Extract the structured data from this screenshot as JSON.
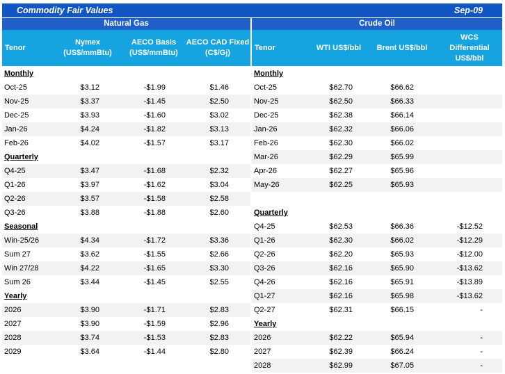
{
  "title": "Commodity Fair Values",
  "date": "Sep-09",
  "left": {
    "group": "Natural Gas",
    "headers": {
      "tenor": "Tenor",
      "nymex": "Nymex (US$/mmBtu)",
      "aeco_basis": "AECO Basis (US$/mmBtu)",
      "aeco_fixed": "AECO CAD Fixed (C$/Gj)"
    },
    "rows": [
      {
        "type": "section",
        "label": "Monthly"
      },
      {
        "tenor": "Oct-25",
        "v1": "$3.12",
        "v2": "-$1.99",
        "v3": "$1.46"
      },
      {
        "tenor": "Nov-25",
        "v1": "$3.37",
        "v2": "-$1.45",
        "v3": "$2.50"
      },
      {
        "tenor": "Dec-25",
        "v1": "$3.93",
        "v2": "-$1.60",
        "v3": "$3.02"
      },
      {
        "tenor": "Jan-26",
        "v1": "$4.24",
        "v2": "-$1.82",
        "v3": "$3.13"
      },
      {
        "tenor": "Feb-26",
        "v1": "$4.02",
        "v2": "-$1.57",
        "v3": "$3.17"
      },
      {
        "type": "section",
        "label": "Quarterly"
      },
      {
        "tenor": "Q4-25",
        "v1": "$3.47",
        "v2": "-$1.68",
        "v3": "$2.32"
      },
      {
        "tenor": "Q1-26",
        "v1": "$3.97",
        "v2": "-$1.62",
        "v3": "$3.04"
      },
      {
        "tenor": "Q2-26",
        "v1": "$3.57",
        "v2": "-$1.58",
        "v3": "$2.58"
      },
      {
        "tenor": "Q3-26",
        "v1": "$3.88",
        "v2": "-$1.88",
        "v3": "$2.60"
      },
      {
        "type": "section",
        "label": "Seasonal"
      },
      {
        "tenor": "Win-25/26",
        "v1": "$4.34",
        "v2": "-$1.72",
        "v3": "$3.36"
      },
      {
        "tenor": "Sum 27",
        "v1": "$3.62",
        "v2": "-$1.55",
        "v3": "$2.66"
      },
      {
        "tenor": "Win 27/28",
        "v1": "$4.22",
        "v2": "-$1.65",
        "v3": "$3.30"
      },
      {
        "tenor": "Sum 26",
        "v1": "$3.44",
        "v2": "-$1.45",
        "v3": "$2.55"
      },
      {
        "type": "section",
        "label": "Yearly"
      },
      {
        "tenor": "2026",
        "v1": "$3.90",
        "v2": "-$1.71",
        "v3": "$2.83"
      },
      {
        "tenor": "2027",
        "v1": "$3.90",
        "v2": "-$1.59",
        "v3": "$2.96"
      },
      {
        "tenor": "2028",
        "v1": "$3.74",
        "v2": "-$1.53",
        "v3": "$2.83"
      },
      {
        "tenor": "2029",
        "v1": "$3.64",
        "v2": "-$1.44",
        "v3": "$2.80"
      }
    ]
  },
  "right": {
    "group": "Crude Oil",
    "headers": {
      "tenor": "Tenor",
      "wti": "WTI US$/bbl",
      "brent": "Brent US$/bbl",
      "wcs": "WCS Differential US$/bbl"
    },
    "rows": [
      {
        "type": "section",
        "label": "Monthly"
      },
      {
        "tenor": "Oct-25",
        "v1": "$62.70",
        "v2": "$66.62",
        "v3": ""
      },
      {
        "tenor": "Nov-25",
        "v1": "$62.50",
        "v2": "$66.33",
        "v3": ""
      },
      {
        "tenor": "Dec-25",
        "v1": "$62.38",
        "v2": "$66.14",
        "v3": ""
      },
      {
        "tenor": "Jan-26",
        "v1": "$62.32",
        "v2": "$66.06",
        "v3": ""
      },
      {
        "tenor": "Feb-26",
        "v1": "$62.30",
        "v2": "$66.02",
        "v3": ""
      },
      {
        "tenor": "Mar-26",
        "v1": "$62.29",
        "v2": "$65.99",
        "v3": ""
      },
      {
        "tenor": "Apr-26",
        "v1": "$62.27",
        "v2": "$65.96",
        "v3": ""
      },
      {
        "tenor": "May-26",
        "v1": "$62.25",
        "v2": "$65.93",
        "v3": ""
      },
      {
        "type": "blank"
      },
      {
        "type": "section",
        "label": "Quarterly"
      },
      {
        "tenor": "Q4-25",
        "v1": "$62.53",
        "v2": "$66.36",
        "v3": "-$12.52"
      },
      {
        "tenor": "Q1-26",
        "v1": "$62.30",
        "v2": "$66.02",
        "v3": "-$12.29"
      },
      {
        "tenor": "Q2-26",
        "v1": "$62.20",
        "v2": "$65.93",
        "v3": "-$12.00"
      },
      {
        "tenor": "Q3-26",
        "v1": "$62.16",
        "v2": "$65.90",
        "v3": "-$13.62"
      },
      {
        "tenor": "Q4-26",
        "v1": "$62.16",
        "v2": "$65.91",
        "v3": "-$13.89"
      },
      {
        "tenor": "Q1-27",
        "v1": "$62.16",
        "v2": "$65.98",
        "v3": "-$13.62"
      },
      {
        "tenor": "Q2-27",
        "v1": "$62.31",
        "v2": "$66.15",
        "v3": "-"
      },
      {
        "type": "section",
        "label": "Yearly"
      },
      {
        "tenor": "2026",
        "v1": "$62.22",
        "v2": "$65.94",
        "v3": "-"
      },
      {
        "tenor": "2027",
        "v1": "$62.39",
        "v2": "$66.24",
        "v3": "-"
      },
      {
        "tenor": "2028",
        "v1": "$62.99",
        "v2": "$67.05",
        "v3": "-"
      }
    ]
  }
}
